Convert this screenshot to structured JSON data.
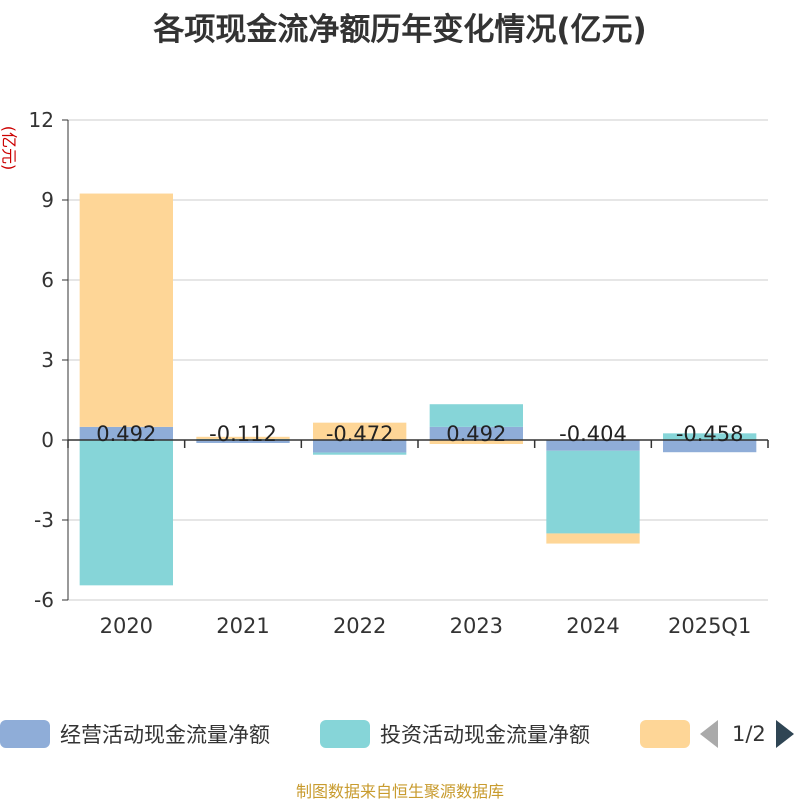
{
  "title": "各项现金流净额历年变化情况(亿元)",
  "unit_label": "(亿元)",
  "source": "制图数据来自恒生聚源数据库",
  "chart_data": {
    "type": "bar",
    "stacked": true,
    "categories": [
      "2020",
      "2021",
      "2022",
      "2023",
      "2024",
      "2025Q1"
    ],
    "ylim": [
      -6,
      12
    ],
    "yticks": [
      12,
      9,
      6,
      3,
      0,
      -3,
      -6
    ],
    "series": [
      {
        "name": "经营活动现金流量净额",
        "color": "#8fadd8",
        "values": [
          0.492,
          -0.112,
          -0.472,
          0.492,
          -0.404,
          -0.458
        ]
      },
      {
        "name": "投资活动现金流量净额",
        "color": "#86d5d8",
        "values": [
          -5.45,
          0.04,
          -0.08,
          0.85,
          -3.1,
          0.25
        ]
      },
      {
        "name": "",
        "color": "#fed697",
        "values": [
          8.75,
          0.08,
          0.65,
          -0.15,
          -0.38,
          0.0
        ]
      }
    ],
    "data_labels": [
      "0.492",
      "-0.112",
      "-0.472",
      "0.492",
      "-0.404",
      "-0.458"
    ]
  },
  "legend": {
    "items": [
      {
        "label": "经营活动现金流量净额",
        "color": "#8fadd8"
      },
      {
        "label": "投资活动现金流量净额",
        "color": "#86d5d8"
      },
      {
        "label": "",
        "color": "#fed697"
      }
    ],
    "page": "1/2"
  }
}
